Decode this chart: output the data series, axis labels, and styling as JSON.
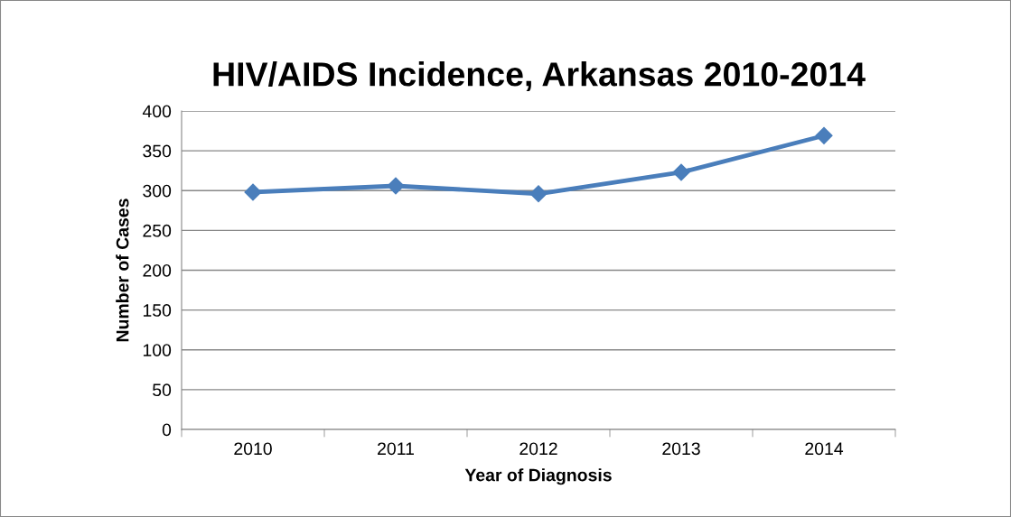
{
  "chart_data": {
    "type": "line",
    "title": "HIV/AIDS Incidence, Arkansas 2010-2014",
    "xlabel": "Year of Diagnosis",
    "ylabel": "Number of Cases",
    "categories": [
      "2010",
      "2011",
      "2012",
      "2013",
      "2014"
    ],
    "series": [
      {
        "color": "#4a7ebb",
        "values": [
          298,
          306,
          296,
          323,
          369
        ]
      }
    ],
    "ylim": [
      0,
      400
    ],
    "yticks": [
      0,
      50,
      100,
      150,
      200,
      250,
      300,
      350,
      400
    ],
    "grid": "y",
    "marker": "diamond",
    "line_style": "solid",
    "legend": false
  }
}
